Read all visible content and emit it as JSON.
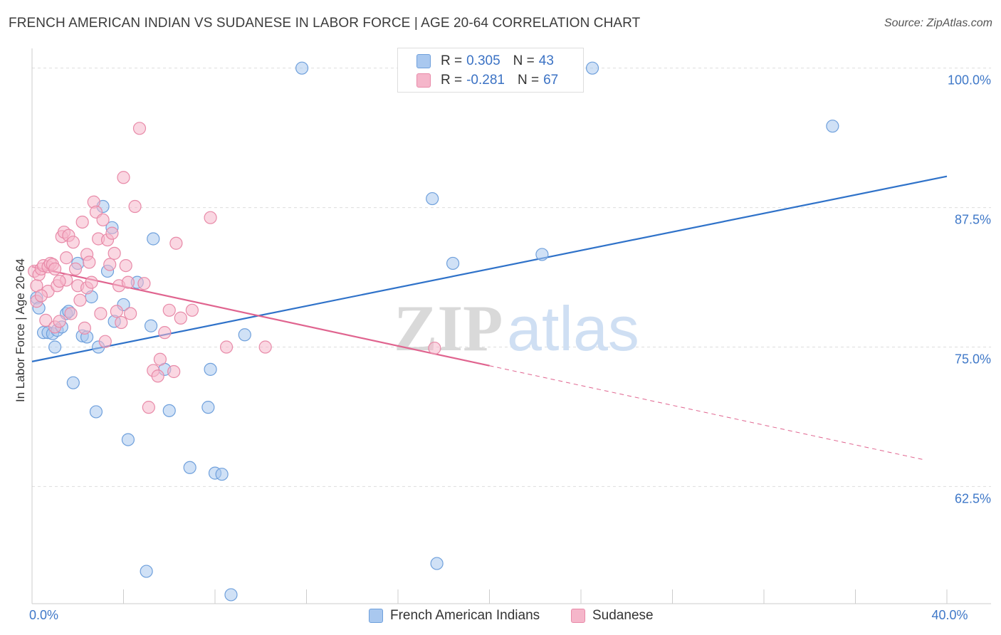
{
  "title": "FRENCH AMERICAN INDIAN VS SUDANESE IN LABOR FORCE | AGE 20-64 CORRELATION CHART",
  "source": "Source: ZipAtlas.com",
  "watermark": {
    "zip": "ZIP",
    "atlas": "atlas"
  },
  "colors": {
    "blue_fill": "#a9c8ef",
    "blue_stroke": "#6fa0dc",
    "blue_line": "#2f72c9",
    "pink_fill": "#f5b6ca",
    "pink_stroke": "#e88aa8",
    "pink_line": "#e0648f",
    "axis_text": "#3f78c8",
    "grid": "#dddddd"
  },
  "stats": [
    {
      "r_label": "R = ",
      "r_value": "0.305",
      "n_label": "N = ",
      "n_value": "43"
    },
    {
      "r_label": "R = ",
      "r_value": "-0.281",
      "n_label": "N = ",
      "n_value": "67"
    }
  ],
  "legend": [
    {
      "label": "French American Indians"
    },
    {
      "label": "Sudanese"
    }
  ],
  "chart_data": {
    "type": "scatter",
    "xlabel": "",
    "ylabel": "In Labor Force | Age 20-64",
    "xlim": [
      0,
      40
    ],
    "ylim": [
      52.0,
      101.0
    ],
    "x_tick_labels": [
      {
        "value": 0,
        "label": "0.0%"
      },
      {
        "value": 40,
        "label": "40.0%"
      }
    ],
    "y_tick_labels": [
      {
        "value": 100.0,
        "label": "100.0%"
      },
      {
        "value": 87.5,
        "label": "87.5%"
      },
      {
        "value": 75.0,
        "label": "75.0%"
      },
      {
        "value": 62.5,
        "label": "62.5%"
      }
    ],
    "series": [
      {
        "name": "French American Indians",
        "trend": {
          "x0": 0,
          "y0": 73.7,
          "x1": 40,
          "y1": 90.3,
          "dashed_from": null
        },
        "points": [
          [
            0.2,
            79.4
          ],
          [
            0.3,
            78.5
          ],
          [
            0.5,
            76.3
          ],
          [
            0.7,
            76.3
          ],
          [
            0.9,
            76.2
          ],
          [
            1.0,
            75.0
          ],
          [
            1.1,
            76.5
          ],
          [
            1.3,
            76.8
          ],
          [
            1.5,
            78.0
          ],
          [
            1.6,
            78.2
          ],
          [
            1.8,
            71.8
          ],
          [
            2.0,
            82.5
          ],
          [
            2.2,
            76.0
          ],
          [
            2.4,
            75.9
          ],
          [
            2.6,
            79.5
          ],
          [
            2.8,
            69.2
          ],
          [
            2.9,
            75.0
          ],
          [
            3.1,
            87.6
          ],
          [
            3.3,
            81.8
          ],
          [
            3.5,
            85.7
          ],
          [
            3.6,
            77.3
          ],
          [
            4.0,
            78.8
          ],
          [
            4.2,
            66.7
          ],
          [
            4.6,
            80.8
          ],
          [
            5.0,
            54.9
          ],
          [
            5.2,
            76.9
          ],
          [
            5.3,
            84.7
          ],
          [
            5.8,
            73.0
          ],
          [
            6.0,
            69.3
          ],
          [
            6.9,
            64.2
          ],
          [
            7.7,
            69.6
          ],
          [
            7.8,
            73.0
          ],
          [
            8.0,
            63.7
          ],
          [
            8.3,
            63.6
          ],
          [
            8.7,
            52.8
          ],
          [
            9.3,
            76.1
          ],
          [
            11.8,
            100.0
          ],
          [
            17.5,
            88.3
          ],
          [
            17.7,
            55.6
          ],
          [
            18.4,
            82.5
          ],
          [
            22.3,
            83.3
          ],
          [
            24.5,
            100.0
          ],
          [
            35.0,
            94.8
          ]
        ]
      },
      {
        "name": "Sudanese",
        "trend": {
          "x0": 0,
          "y0": 82.2,
          "x1": 39,
          "y1": 64.9,
          "dashed_from": 20
        },
        "points": [
          [
            0.1,
            81.8
          ],
          [
            0.2,
            80.5
          ],
          [
            0.2,
            79.1
          ],
          [
            0.3,
            81.5
          ],
          [
            0.4,
            82.0
          ],
          [
            0.5,
            82.3
          ],
          [
            0.6,
            77.4
          ],
          [
            0.7,
            80.0
          ],
          [
            0.7,
            82.2
          ],
          [
            0.8,
            82.5
          ],
          [
            0.9,
            82.4
          ],
          [
            1.0,
            82.0
          ],
          [
            1.0,
            76.8
          ],
          [
            1.1,
            80.5
          ],
          [
            1.2,
            77.3
          ],
          [
            1.3,
            84.9
          ],
          [
            1.4,
            85.3
          ],
          [
            1.5,
            81.0
          ],
          [
            1.5,
            83.0
          ],
          [
            1.6,
            85.0
          ],
          [
            1.7,
            78.0
          ],
          [
            1.8,
            84.4
          ],
          [
            1.9,
            82.0
          ],
          [
            2.0,
            80.5
          ],
          [
            2.1,
            79.2
          ],
          [
            2.2,
            86.2
          ],
          [
            2.3,
            76.7
          ],
          [
            2.4,
            80.3
          ],
          [
            2.4,
            83.3
          ],
          [
            2.5,
            82.6
          ],
          [
            2.6,
            80.8
          ],
          [
            2.7,
            88.0
          ],
          [
            2.8,
            87.1
          ],
          [
            2.9,
            84.7
          ],
          [
            3.0,
            78.0
          ],
          [
            3.1,
            86.4
          ],
          [
            3.2,
            75.5
          ],
          [
            3.3,
            84.6
          ],
          [
            3.4,
            82.4
          ],
          [
            3.5,
            85.2
          ],
          [
            3.6,
            83.4
          ],
          [
            3.7,
            78.2
          ],
          [
            3.8,
            80.5
          ],
          [
            3.9,
            77.2
          ],
          [
            4.0,
            90.2
          ],
          [
            4.1,
            82.3
          ],
          [
            4.2,
            80.8
          ],
          [
            4.3,
            78.0
          ],
          [
            4.5,
            87.6
          ],
          [
            4.7,
            94.6
          ],
          [
            4.9,
            80.7
          ],
          [
            5.1,
            69.6
          ],
          [
            5.3,
            72.9
          ],
          [
            5.5,
            72.4
          ],
          [
            5.6,
            73.9
          ],
          [
            5.8,
            76.3
          ],
          [
            6.0,
            78.3
          ],
          [
            6.2,
            72.8
          ],
          [
            6.3,
            84.3
          ],
          [
            6.5,
            77.6
          ],
          [
            7.0,
            78.3
          ],
          [
            7.8,
            86.6
          ],
          [
            8.5,
            75.0
          ],
          [
            10.2,
            75.0
          ],
          [
            1.2,
            80.9
          ],
          [
            17.6,
            74.9
          ],
          [
            0.4,
            79.6
          ]
        ]
      }
    ]
  }
}
